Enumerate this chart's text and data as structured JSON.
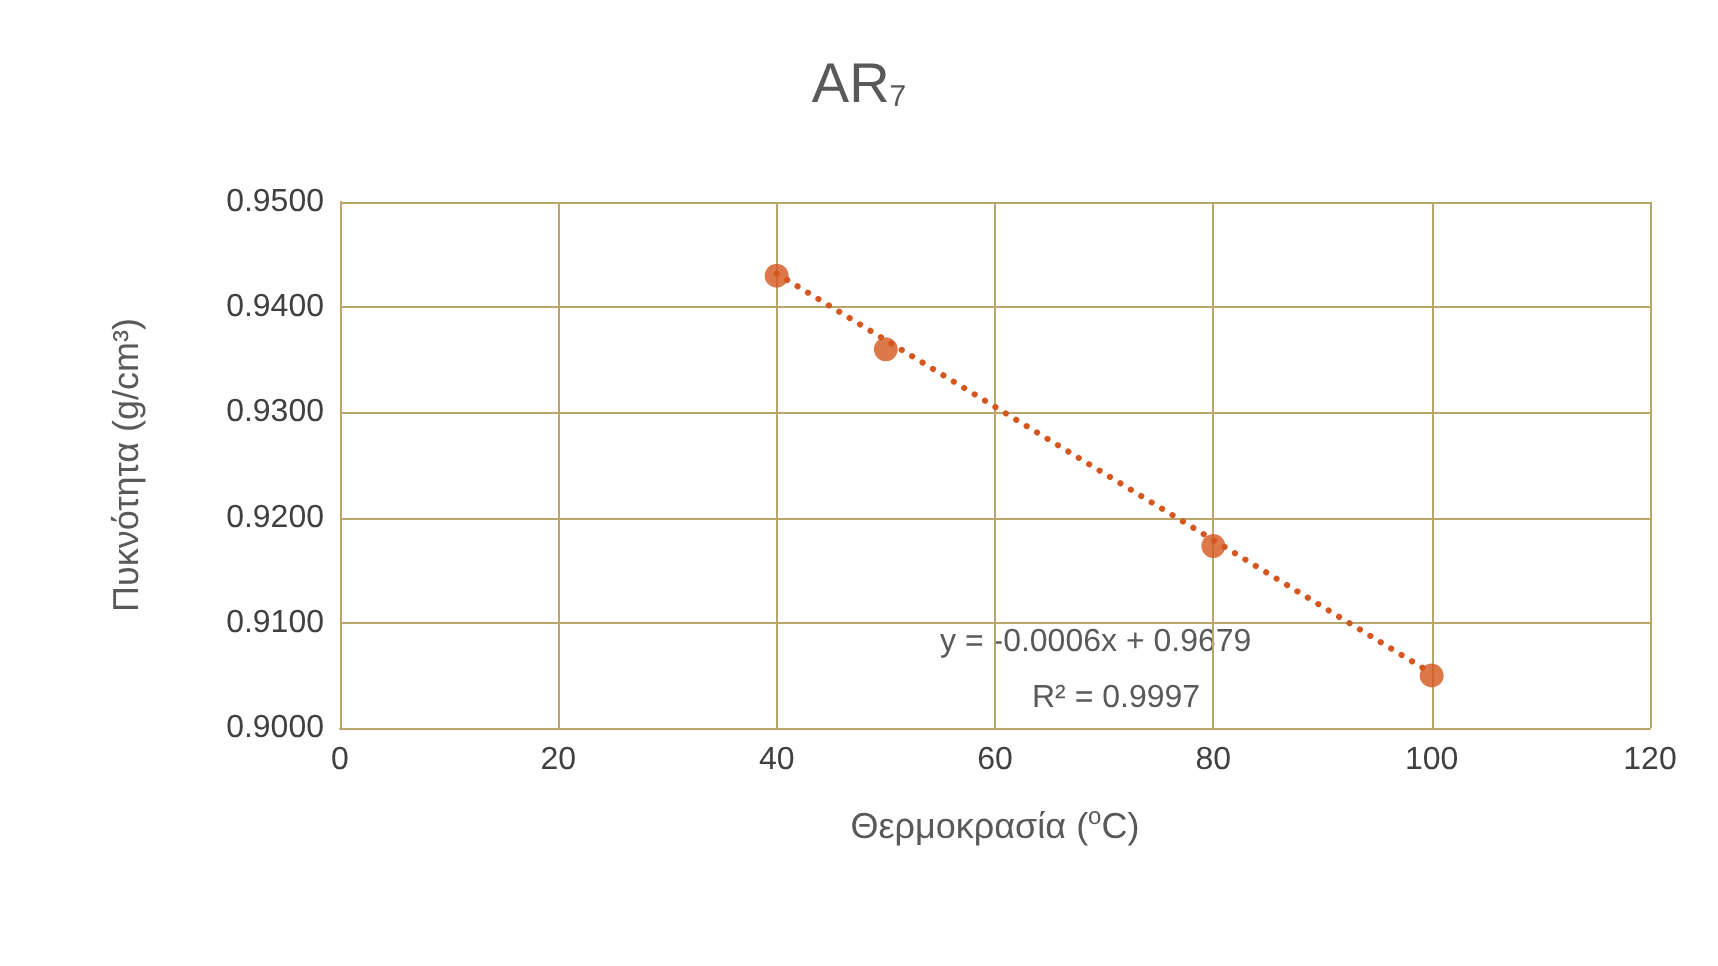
{
  "chart_data": {
    "type": "scatter",
    "title": "AR$_{7}$",
    "xlabel": "Θερμοκρασία ($^{o}$C)",
    "ylabel": "Πυκνότητα (g/cm³)",
    "x": [
      40,
      50,
      80,
      100
    ],
    "series": [
      {
        "color": "#d5561e",
        "values": [
          0.943,
          0.936,
          0.9173,
          0.905
        ],
        "marker": "circle"
      },
      {
        "type": "line",
        "color": "#d5561e",
        "x": [
          40,
          100
        ],
        "values": [
          0.9432,
          0.9052
        ],
        "line_style": "dotted",
        "marker": "none"
      }
    ],
    "xlim": [
      0,
      120
    ],
    "xticks": [
      0,
      20,
      40,
      60,
      80,
      100,
      120
    ],
    "ylim": [
      0.9,
      0.95
    ],
    "yticks": [
      {
        "value": 0.9,
        "label": "0.9000"
      },
      {
        "value": 0.91,
        "label": "0.9100"
      },
      {
        "value": 0.92,
        "label": "0.9200"
      },
      {
        "value": 0.93,
        "label": "0.9300"
      },
      {
        "value": 0.94,
        "label": "0.9400"
      },
      {
        "value": 0.95,
        "label": "0.9500"
      }
    ],
    "grid": true,
    "annotations": [
      "y = -0.0006x + 0.9679",
      "R² = 0.9997"
    ]
  }
}
